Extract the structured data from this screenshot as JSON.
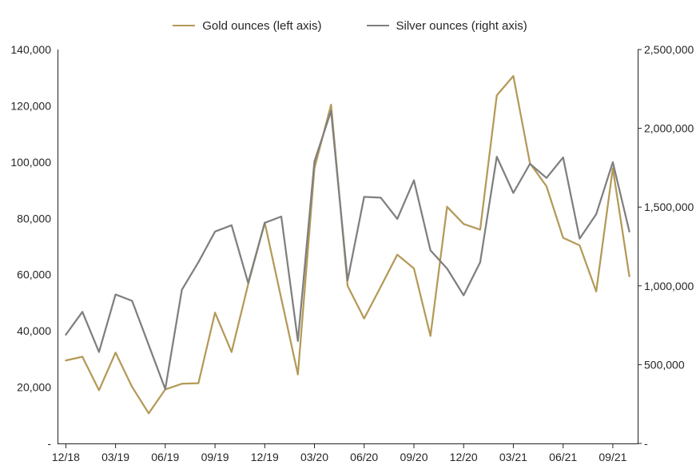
{
  "chart_data": {
    "type": "line",
    "title": "",
    "legend_position": "top",
    "grid": false,
    "x": [
      "12/18",
      "01/19",
      "02/19",
      "03/19",
      "04/19",
      "05/19",
      "06/19",
      "07/19",
      "08/19",
      "09/19",
      "10/19",
      "11/19",
      "12/19",
      "01/20",
      "02/20",
      "03/20",
      "04/20",
      "05/20",
      "06/20",
      "07/20",
      "08/20",
      "09/20",
      "10/20",
      "11/20",
      "12/20",
      "01/21",
      "02/21",
      "03/21",
      "04/21",
      "05/21",
      "06/21",
      "07/21",
      "08/21",
      "09/21",
      "10/21"
    ],
    "x_tick_labels": [
      "12/18",
      "03/19",
      "06/19",
      "09/19",
      "12/19",
      "03/20",
      "06/20",
      "09/20",
      "12/20",
      "03/21",
      "06/21",
      "09/21"
    ],
    "series": [
      {
        "name": "Gold ounces (left axis)",
        "axis": "left",
        "color": "#b49a58",
        "values": [
          29500,
          30800,
          18900,
          32300,
          20100,
          10700,
          19200,
          21200,
          21400,
          46500,
          32500,
          56500,
          78500,
          51500,
          24500,
          97800,
          120400,
          56000,
          44400,
          55700,
          67100,
          62200,
          38200,
          84100,
          78000,
          76000,
          123700,
          130600,
          99600,
          91400,
          73100,
          70400,
          54000,
          97800,
          59400
        ]
      },
      {
        "name": "Silver ounces (right axis)",
        "axis": "right",
        "color": "#7f7f7f",
        "values": [
          690000,
          835000,
          580000,
          945000,
          905000,
          625000,
          345000,
          975000,
          1150000,
          1345000,
          1385000,
          1020000,
          1400000,
          1440000,
          650000,
          1790000,
          2110000,
          1035000,
          1565000,
          1560000,
          1425000,
          1670000,
          1225000,
          1110000,
          940000,
          1150000,
          1820000,
          1590000,
          1775000,
          1685000,
          1815000,
          1300000,
          1455000,
          1785000,
          1345000
        ]
      }
    ],
    "left_axis": {
      "min": 0,
      "max": 140000,
      "step": 20000,
      "tick_labels": [
        "-",
        "20,000",
        "40,000",
        "60,000",
        "80,000",
        "100,000",
        "120,000",
        "140,000"
      ]
    },
    "right_axis": {
      "min": 0,
      "max": 2500000,
      "step": 500000,
      "tick_labels": [
        "-",
        "500,000",
        "1,000,000",
        "1,500,000",
        "2,000,000",
        "2,500,000"
      ]
    },
    "axis_color": "#222222",
    "text_color": "#262626"
  }
}
